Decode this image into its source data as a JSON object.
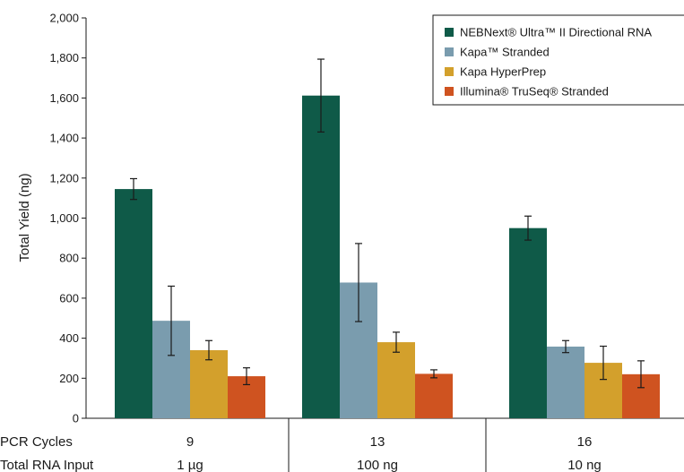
{
  "chart_data": {
    "type": "bar",
    "title": "",
    "xlabel": "",
    "ylabel": "Total Yield (ng)",
    "ylim": [
      0,
      2000
    ],
    "yticks": [
      0,
      200,
      400,
      600,
      800,
      1000,
      1200,
      1400,
      1600,
      1800,
      2000
    ],
    "ytick_labels": [
      "0",
      "200",
      "400",
      "600",
      "800",
      "1,000",
      "1,200",
      "1,400",
      "1,600",
      "1,800",
      "2,000"
    ],
    "grid": false,
    "legend_position": "top-right",
    "categories": [
      "9",
      "13",
      "16"
    ],
    "row_labels": {
      "pcr_cycles": "PCR Cycles",
      "total_rna_input": "Total RNA Input"
    },
    "rna_inputs": [
      "1 µg",
      "100 ng",
      "10 ng"
    ],
    "series": [
      {
        "name": "NEBNext® Ultra™ II Directional RNA",
        "color": "#0f5a48",
        "values": [
          1145,
          1612,
          950
        ],
        "errors": [
          52,
          182,
          60
        ]
      },
      {
        "name": "Kapa™ Stranded",
        "color": "#7a9cae",
        "values": [
          487,
          678,
          358
        ],
        "errors": [
          173,
          195,
          30
        ]
      },
      {
        "name": "Kapa HyperPrep",
        "color": "#d3a02c",
        "values": [
          340,
          380,
          277
        ],
        "errors": [
          48,
          50,
          83
        ]
      },
      {
        "name": "Illumina® TruSeq® Stranded",
        "color": "#cf5320",
        "values": [
          210,
          222,
          220
        ],
        "errors": [
          42,
          20,
          67
        ]
      }
    ]
  }
}
